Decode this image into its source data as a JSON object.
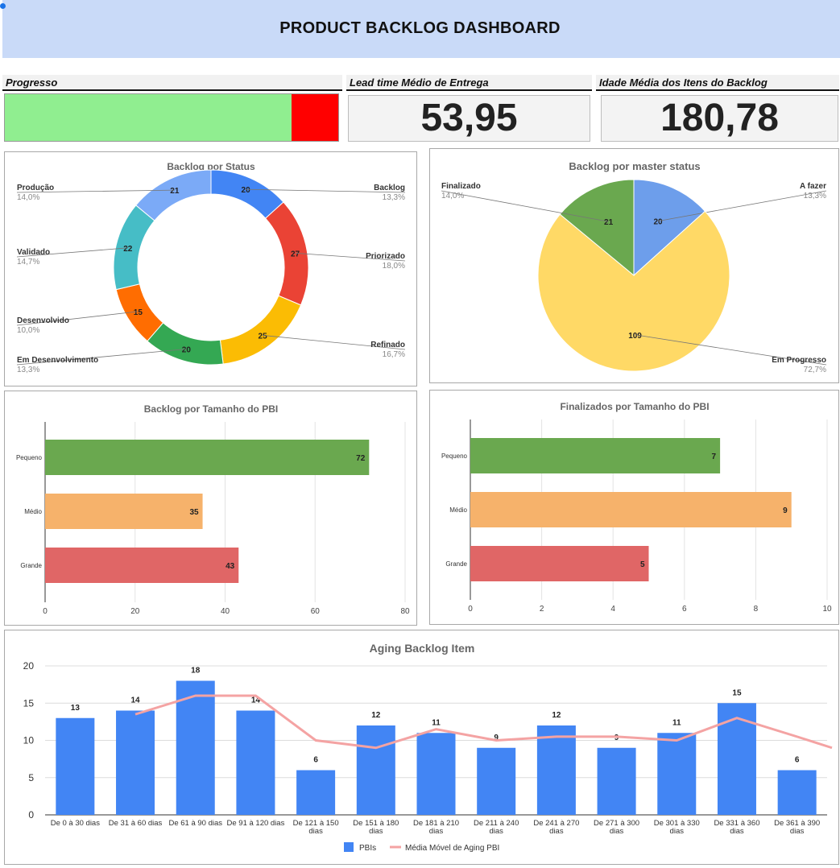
{
  "header": {
    "title": "PRODUCT BACKLOG DASHBOARD"
  },
  "kpis": {
    "progress": {
      "label": "Progresso",
      "fraction": 0.86,
      "done_color": "#90ee90",
      "remaining_color": "#ff0000"
    },
    "lead_time": {
      "label": "Lead time Médio de Entrega",
      "value": "53,95"
    },
    "age": {
      "label": "Idade Média dos Itens do Backlog",
      "value": "180,78"
    }
  },
  "chart_data": [
    {
      "id": "status",
      "type": "pie",
      "donut": true,
      "title": "Backlog por Status",
      "slices": [
        {
          "label": "Backlog",
          "value": 20,
          "pct": "13,3%",
          "color": "#4285f4"
        },
        {
          "label": "Priorizado",
          "value": 27,
          "pct": "18,0%",
          "color": "#ea4335"
        },
        {
          "label": "Refinado",
          "value": 25,
          "pct": "16,7%",
          "color": "#fbbc04"
        },
        {
          "label": "Em Desenvolvimento",
          "value": 20,
          "pct": "13,3%",
          "color": "#34a853"
        },
        {
          "label": "Desenvolvido",
          "value": 15,
          "pct": "10,0%",
          "color": "#ff6d01"
        },
        {
          "label": "Validado",
          "value": 22,
          "pct": "14,7%",
          "color": "#46bdc6"
        },
        {
          "label": "Produção",
          "value": 21,
          "pct": "14,0%",
          "color": "#7baaf7"
        }
      ]
    },
    {
      "id": "master",
      "type": "pie",
      "title": "Backlog por master status",
      "slices": [
        {
          "label": "A fazer",
          "value": 20,
          "pct": "13,3%",
          "color": "#6d9eeb"
        },
        {
          "label": "Em Progresso",
          "value": 109,
          "pct": "72,7%",
          "color": "#ffd966"
        },
        {
          "label": "Finalizado",
          "value": 21,
          "pct": "14,0%",
          "color": "#6aa84f"
        }
      ]
    },
    {
      "id": "size",
      "type": "bar",
      "orientation": "horizontal",
      "title": "Backlog por Tamanho do PBI",
      "categories": [
        "Pequeno",
        "Médio",
        "Grande"
      ],
      "values": [
        72,
        35,
        43
      ],
      "colors": [
        "#6aa84f",
        "#f6b26b",
        "#e06666"
      ],
      "xlim": [
        0,
        80
      ],
      "ticks": [
        "0",
        "20",
        "40",
        "60",
        "80"
      ]
    },
    {
      "id": "done_size",
      "type": "bar",
      "orientation": "horizontal",
      "title": "Finalizados por Tamanho do PBI",
      "categories": [
        "Pequeno",
        "Médio",
        "Grande"
      ],
      "values": [
        7,
        9,
        5
      ],
      "colors": [
        "#6aa84f",
        "#f6b26b",
        "#e06666"
      ],
      "xlim": [
        0,
        10
      ],
      "ticks": [
        "0",
        "2",
        "4",
        "6",
        "8",
        "10"
      ]
    },
    {
      "id": "aging",
      "type": "bar",
      "title": "Aging Backlog Item",
      "categories": [
        "De 0 à 30 dias",
        "De 31 à 60 dias",
        "De 61 à 90 dias",
        "De 91 à 120 dias",
        "De 121 à 150 dias",
        "De 151 à 180 dias",
        "De 181 à 210 dias",
        "De 211 à 240 dias",
        "De 241 à 270 dias",
        "De 271 à 300 dias",
        "De 301 à 330 dias",
        "De 331 à 360 dias",
        "De 361 à 390 dias"
      ],
      "series": [
        {
          "name": "PBIs",
          "type": "bar",
          "color": "#4285f4",
          "values": [
            13,
            14,
            18,
            14,
            6,
            12,
            11,
            9,
            12,
            9,
            11,
            15,
            6
          ]
        },
        {
          "name": "Média Móvel de Aging PBI",
          "type": "line",
          "color": "#f4a3a3",
          "values": [
            null,
            13.5,
            16,
            16,
            10,
            9,
            11.5,
            10,
            10.5,
            10.5,
            10,
            13,
            10.5
          ]
        }
      ],
      "trailing_line_value": 9,
      "ylim": [
        0,
        20
      ],
      "yticks": [
        "0",
        "5",
        "10",
        "15",
        "20"
      ],
      "legend": "bottom"
    }
  ]
}
